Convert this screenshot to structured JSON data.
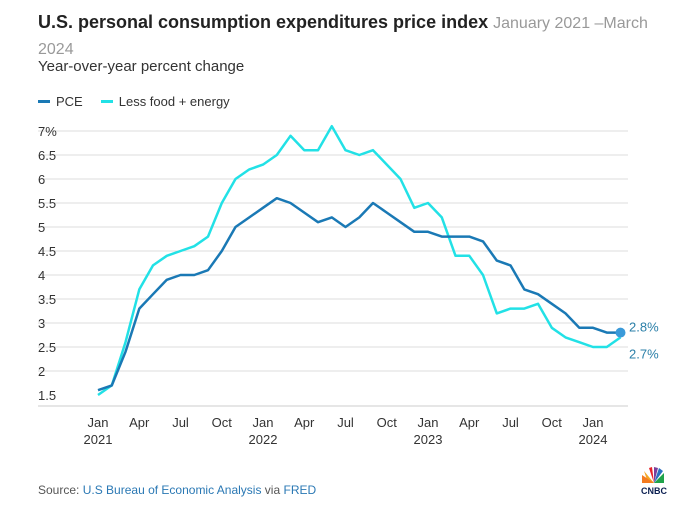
{
  "header": {
    "title": "U.S. personal consumption expenditures price index",
    "date_range": "January 2021 –March 2024",
    "subtitle": "Year-over-year percent change"
  },
  "footer": {
    "source_prefix": "Source: ",
    "source_name": "U.S Bureau of Economic Analysis",
    "source_via": " via ",
    "source_site": "FRED",
    "logo": "CNBC"
  },
  "colors": {
    "pce": "#1a79b5",
    "core": "#22e1e6"
  },
  "chart_data": {
    "type": "line",
    "title": "U.S. personal consumption expenditures price index",
    "ylabel": "Year-over-year percent change",
    "ylim": [
      1.5,
      7
    ],
    "y_ticks": [
      "1.5",
      "2",
      "2.5",
      "3",
      "3.5",
      "4",
      "4.5",
      "5",
      "5.5",
      "6",
      "6.5",
      "7%"
    ],
    "x_ticks": [
      {
        "m": 0,
        "l1": "Jan",
        "l2": "2021"
      },
      {
        "m": 3,
        "l1": "Apr",
        "l2": ""
      },
      {
        "m": 6,
        "l1": "Jul",
        "l2": ""
      },
      {
        "m": 9,
        "l1": "Oct",
        "l2": ""
      },
      {
        "m": 12,
        "l1": "Jan",
        "l2": "2022"
      },
      {
        "m": 15,
        "l1": "Apr",
        "l2": ""
      },
      {
        "m": 18,
        "l1": "Jul",
        "l2": ""
      },
      {
        "m": 21,
        "l1": "Oct",
        "l2": ""
      },
      {
        "m": 24,
        "l1": "Jan",
        "l2": "2023"
      },
      {
        "m": 27,
        "l1": "Apr",
        "l2": ""
      },
      {
        "m": 30,
        "l1": "Jul",
        "l2": ""
      },
      {
        "m": 33,
        "l1": "Oct",
        "l2": ""
      },
      {
        "m": 36,
        "l1": "Jan",
        "l2": "2024"
      }
    ],
    "x_start": "2021-01",
    "x_end": "2024-03",
    "series": [
      {
        "name": "PCE",
        "color": "#1a79b5",
        "end_label": "2.8%",
        "values": [
          1.6,
          1.7,
          2.4,
          3.3,
          3.6,
          3.9,
          4.0,
          4.0,
          4.1,
          4.5,
          5.0,
          5.2,
          5.4,
          5.6,
          5.5,
          5.3,
          5.1,
          5.2,
          5.0,
          5.2,
          5.5,
          5.3,
          5.1,
          4.9,
          4.9,
          4.8,
          4.8,
          4.8,
          4.7,
          4.3,
          4.2,
          3.7,
          3.6,
          3.4,
          3.2,
          2.9,
          2.9,
          2.8,
          2.8
        ]
      },
      {
        "name": "Less food + energy",
        "color": "#22e1e6",
        "end_label": "2.7%",
        "values": [
          1.5,
          1.7,
          2.6,
          3.7,
          4.2,
          4.4,
          4.5,
          4.6,
          4.8,
          5.5,
          6.0,
          6.2,
          6.3,
          6.5,
          6.9,
          6.6,
          6.6,
          7.1,
          6.6,
          6.5,
          6.6,
          6.3,
          6.0,
          5.4,
          5.5,
          5.2,
          4.4,
          4.4,
          4.0,
          3.2,
          3.3,
          3.3,
          3.4,
          2.9,
          2.7,
          2.6,
          2.5,
          2.5,
          2.7
        ]
      }
    ]
  }
}
